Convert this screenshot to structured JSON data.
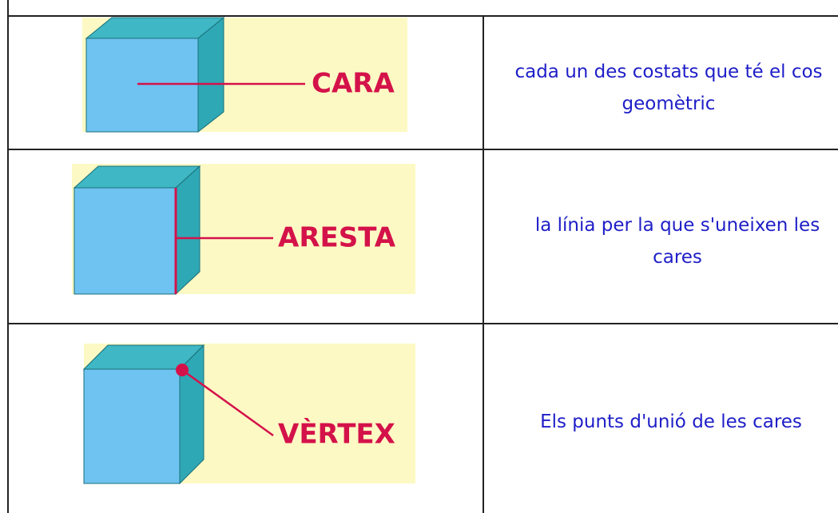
{
  "table": {
    "rows": [
      {
        "term": "CARA",
        "definition": "cada un des costats que té el cos geomètric"
      },
      {
        "term": "ARESTA",
        "definition": "la línia per la que s'uneixen les cares"
      },
      {
        "term": "VÈRTEX",
        "definition": "Els punts d'unió de les cares"
      }
    ]
  }
}
